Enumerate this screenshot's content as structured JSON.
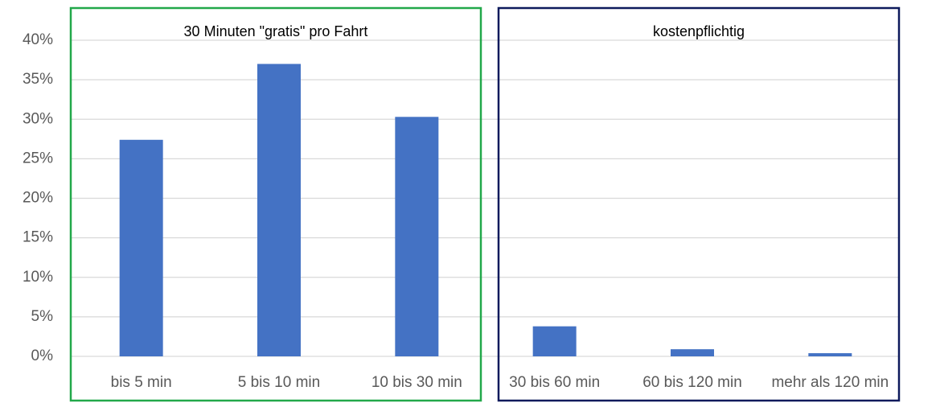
{
  "chart_data": {
    "type": "bar",
    "categories": [
      "bis 5 min",
      "5 bis 10 min",
      "10 bis 30 min",
      "30 bis 60 min",
      "60 bis 120 min",
      "mehr als 120 min"
    ],
    "values": [
      27.4,
      37,
      30.3,
      3.8,
      0.9,
      0.4
    ],
    "color": "#4472c4",
    "ylim": [
      0,
      40
    ],
    "yticks": [
      {
        "value": 0,
        "label": "0%"
      },
      {
        "value": 5,
        "label": "5%"
      },
      {
        "value": 10,
        "label": "10%"
      },
      {
        "value": 15,
        "label": "15%"
      },
      {
        "value": 20,
        "label": "20%"
      },
      {
        "value": 25,
        "label": "25%"
      },
      {
        "value": 30,
        "label": "30%"
      },
      {
        "value": 35,
        "label": "35%"
      },
      {
        "value": 40,
        "label": "40%"
      }
    ],
    "grid": true,
    "annotations": [
      {
        "text": "30 Minuten \"gratis\" pro Fahrt",
        "color": "#22a84a"
      },
      {
        "text": "kostenpflichtig",
        "color": "#0d1a5c"
      }
    ]
  }
}
